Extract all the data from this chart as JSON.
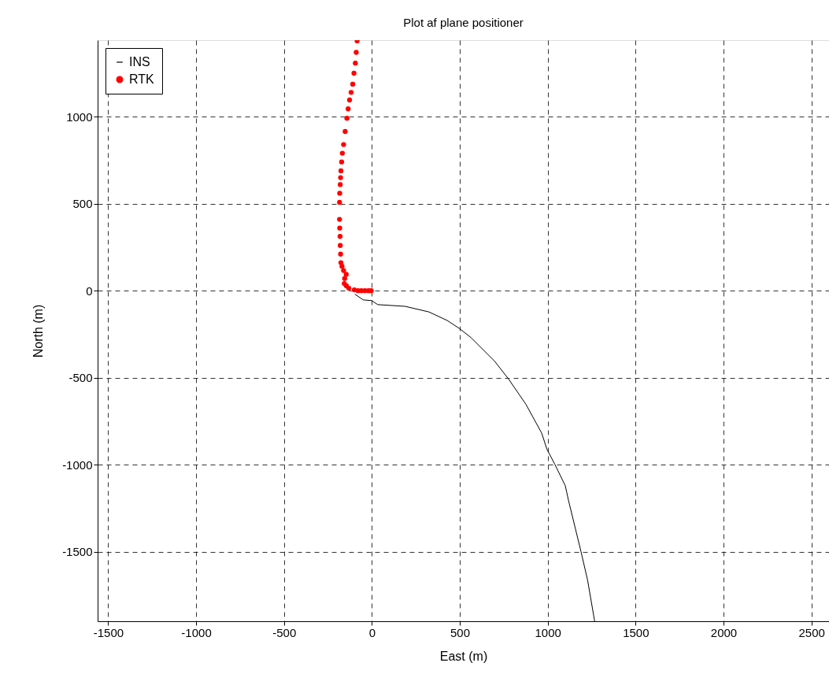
{
  "chart_data": {
    "type": "line",
    "title": "Plot af plane positioner",
    "xlabel": "East (m)",
    "ylabel": "North (m)",
    "xlim": [
      -1560,
      2600
    ],
    "ylim": [
      -1900,
      1440
    ],
    "xticks": [
      -1500,
      -1000,
      -500,
      0,
      500,
      1000,
      1500,
      2000,
      2500
    ],
    "yticks": [
      -1500,
      -1000,
      -500,
      0,
      500,
      1000
    ],
    "grid": true,
    "legend": "top left",
    "series": [
      {
        "name": "INS",
        "color": "#000000",
        "marker": "none",
        "line_style": "solid",
        "x": [
          -97,
          -49,
          -1,
          33,
          189,
          324,
          428,
          496,
          563,
          697,
          779,
          876,
          966,
          995,
          1040,
          1100,
          1118,
          1189,
          1227,
          1267
        ],
        "values": [
          -20,
          -53,
          -57,
          -80,
          -90,
          -122,
          -171,
          -216,
          -269,
          -404,
          -510,
          -653,
          -819,
          -910,
          -997,
          -1121,
          -1204,
          -1498,
          -1664,
          -1900
        ]
      },
      {
        "name": "RTK",
        "type": "scatter",
        "color": "#ff0000",
        "marker": "circle",
        "x": [
          -4,
          -20,
          -40,
          -60,
          -79,
          -100,
          -131,
          -145,
          -157,
          -155,
          -146,
          -161,
          -170,
          -176,
          -178,
          -180,
          -181,
          -183,
          -184,
          -184,
          -183,
          -180,
          -178,
          -176,
          -172,
          -168,
          -161,
          -152,
          -142,
          -135,
          -127,
          -118,
          -109,
          -102,
          -94,
          -89,
          -84
        ],
        "values": [
          0,
          0,
          0,
          0,
          0,
          5,
          14,
          28,
          41,
          70,
          94,
          116,
          140,
          161,
          210,
          260,
          312,
          360,
          410,
          508,
          560,
          610,
          650,
          689,
          740,
          790,
          840,
          915,
          991,
          1045,
          1096,
          1140,
          1187,
          1250,
          1308,
          1370,
          1436
        ]
      }
    ]
  }
}
